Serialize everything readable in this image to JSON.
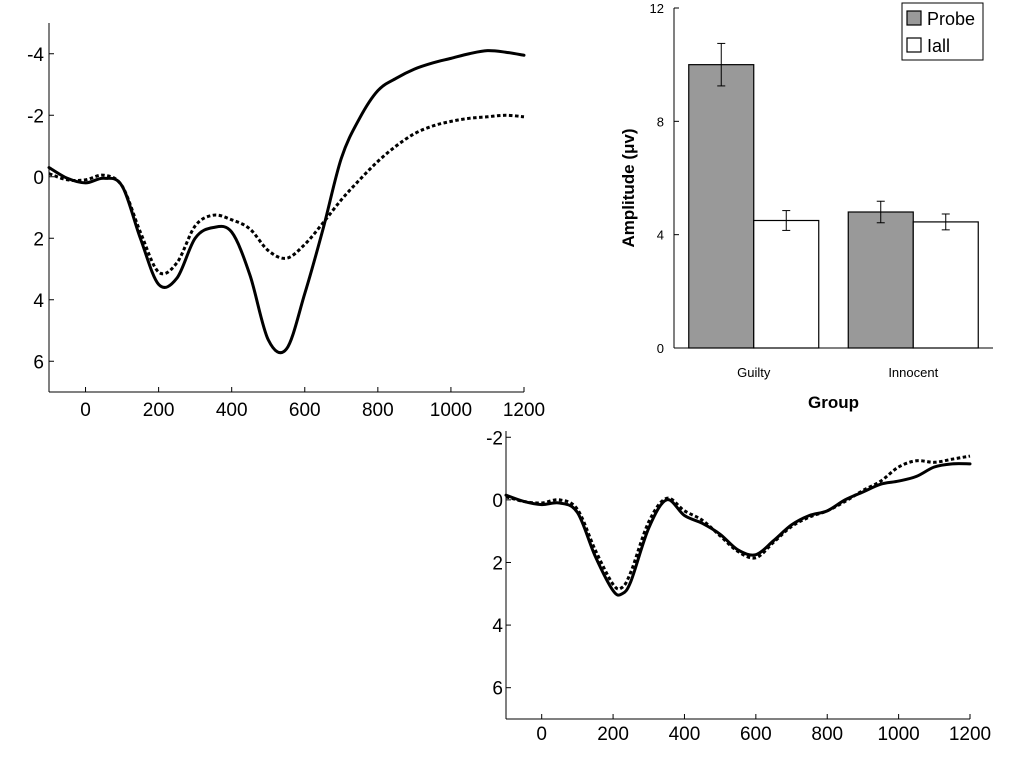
{
  "chart_data": [
    {
      "type": "line",
      "title": "",
      "xlabel": "",
      "ylabel": "",
      "xlim": [
        -100,
        1200
      ],
      "ylim": [
        7,
        -5
      ],
      "y_inverted": true,
      "x_ticks": [
        0,
        200,
        400,
        600,
        800,
        1000,
        1200
      ],
      "y_ticks": [
        -4,
        -2,
        0,
        2,
        4,
        6
      ],
      "grid": false,
      "series": [
        {
          "style": "solid",
          "x": [
            -100,
            -50,
            0,
            50,
            100,
            150,
            200,
            250,
            300,
            350,
            400,
            450,
            500,
            550,
            600,
            650,
            700,
            750,
            800,
            850,
            900,
            950,
            1000,
            1050,
            1100,
            1150,
            1200
          ],
          "y": [
            -0.3,
            0.05,
            0.2,
            0.05,
            0.3,
            2.0,
            3.5,
            3.3,
            2.0,
            1.65,
            1.8,
            3.2,
            5.3,
            5.6,
            3.8,
            1.7,
            -0.6,
            -1.9,
            -2.8,
            -3.2,
            -3.5,
            -3.7,
            -3.85,
            -4.0,
            -4.1,
            -4.05,
            -3.95
          ]
        },
        {
          "style": "dotted",
          "x": [
            -100,
            -50,
            0,
            50,
            100,
            150,
            200,
            250,
            300,
            350,
            400,
            450,
            500,
            550,
            600,
            650,
            700,
            750,
            800,
            850,
            900,
            950,
            1000,
            1050,
            1100,
            1150,
            1200
          ],
          "y": [
            -0.1,
            0.1,
            0.1,
            -0.05,
            0.3,
            1.8,
            3.1,
            2.8,
            1.6,
            1.25,
            1.4,
            1.7,
            2.4,
            2.65,
            2.2,
            1.5,
            0.75,
            0.1,
            -0.5,
            -1.0,
            -1.4,
            -1.65,
            -1.8,
            -1.9,
            -1.95,
            -2.0,
            -1.95
          ]
        }
      ]
    },
    {
      "type": "bar",
      "title": "",
      "xlabel": "Group",
      "ylabel": "Amplitude (μv)",
      "ylim": [
        0,
        12
      ],
      "y_ticks": [
        0,
        4,
        8,
        12
      ],
      "categories": [
        "Guilty",
        "Innocent"
      ],
      "legend_position": "top-right",
      "grid": false,
      "series": [
        {
          "name": "Probe",
          "color": "#999999",
          "values": [
            10.0,
            4.8
          ],
          "errors": [
            0.75,
            0.38
          ]
        },
        {
          "name": "Iall",
          "color": "#ffffff",
          "values": [
            4.5,
            4.45
          ],
          "errors": [
            0.35,
            0.28
          ]
        }
      ]
    },
    {
      "type": "line",
      "title": "",
      "xlabel": "",
      "ylabel": "",
      "xlim": [
        -100,
        1200
      ],
      "ylim": [
        7,
        -2.2
      ],
      "y_inverted": true,
      "x_ticks": [
        0,
        200,
        400,
        600,
        800,
        1000,
        1200
      ],
      "y_ticks": [
        -2,
        0,
        2,
        4,
        6
      ],
      "grid": false,
      "series": [
        {
          "style": "solid",
          "x": [
            -100,
            -50,
            0,
            50,
            100,
            150,
            200,
            225,
            250,
            300,
            350,
            400,
            450,
            500,
            550,
            600,
            650,
            700,
            750,
            800,
            850,
            900,
            950,
            1000,
            1050,
            1100,
            1150,
            1200
          ],
          "y": [
            -0.15,
            0.05,
            0.15,
            0.1,
            0.4,
            1.8,
            2.9,
            3.0,
            2.6,
            0.9,
            0.0,
            0.5,
            0.75,
            1.1,
            1.6,
            1.75,
            1.3,
            0.8,
            0.5,
            0.35,
            0.0,
            -0.25,
            -0.5,
            -0.6,
            -0.75,
            -1.05,
            -1.15,
            -1.15
          ]
        },
        {
          "style": "dotted",
          "x": [
            -100,
            -50,
            0,
            50,
            100,
            150,
            200,
            225,
            250,
            300,
            350,
            400,
            450,
            500,
            550,
            600,
            650,
            700,
            750,
            800,
            850,
            900,
            950,
            1000,
            1050,
            1100,
            1150,
            1200
          ],
          "y": [
            -0.1,
            0.05,
            0.1,
            0.0,
            0.3,
            1.6,
            2.7,
            2.8,
            2.3,
            0.7,
            -0.05,
            0.35,
            0.65,
            1.15,
            1.65,
            1.85,
            1.35,
            0.85,
            0.55,
            0.35,
            0.05,
            -0.3,
            -0.6,
            -1.05,
            -1.25,
            -1.2,
            -1.3,
            -1.4
          ]
        }
      ]
    }
  ]
}
